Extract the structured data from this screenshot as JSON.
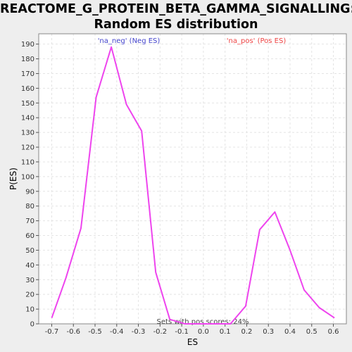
{
  "title_line1": "REACTOME_G_PROTEIN_BETA_GAMMA_SIGNALLING:",
  "title_line2": "Random ES distribution",
  "chart_data": {
    "type": "line",
    "xlabel": "ES",
    "ylabel": "P(ES)",
    "xlim": [
      -0.76,
      0.66
    ],
    "ylim": [
      0,
      197
    ],
    "x_ticks": [
      -0.7,
      -0.6,
      -0.5,
      -0.4,
      -0.3,
      -0.2,
      -0.1,
      0.0,
      0.1,
      0.2,
      0.3,
      0.4,
      0.5,
      0.6
    ],
    "x_tick_labels": [
      "-0.7",
      "-0.6",
      "-0.5",
      "-0.4",
      "-0.3",
      "-0.2",
      "-0.1",
      "0.0",
      "0.1",
      "0.2",
      "0.3",
      "0.4",
      "0.5",
      "0.6"
    ],
    "y_ticks": [
      0,
      10,
      20,
      30,
      40,
      50,
      60,
      70,
      80,
      90,
      100,
      110,
      120,
      130,
      140,
      150,
      160,
      170,
      180,
      190
    ],
    "y_tick_labels": [
      "0",
      "10",
      "20",
      "30",
      "40",
      "50",
      "60",
      "70",
      "80",
      "90",
      "100",
      "110",
      "120",
      "130",
      "140",
      "150",
      "160",
      "170",
      "180",
      "190"
    ],
    "grid": true,
    "line_color": "#ee44ee",
    "series": [
      {
        "values_x": [
          -0.7,
          -0.635,
          -0.565,
          -0.495,
          -0.425,
          -0.355,
          -0.285,
          -0.22,
          -0.155,
          -0.085,
          -0.015,
          0.055,
          0.125,
          0.195,
          0.26,
          0.33,
          0.4,
          0.465,
          0.535,
          0.605
        ],
        "values_y": [
          4,
          31,
          65,
          154,
          188,
          149,
          131,
          35,
          3,
          0,
          0,
          0,
          0,
          12,
          64,
          76,
          50,
          23,
          11,
          4
        ]
      }
    ],
    "annotations": {
      "neg_label": "'na_neg' (Neg ES)",
      "neg_color": "#4444cc",
      "pos_label": "'na_pos' (Pos ES)",
      "pos_color": "#ee4444",
      "footer": "Sets with pos scores: 24%"
    }
  }
}
